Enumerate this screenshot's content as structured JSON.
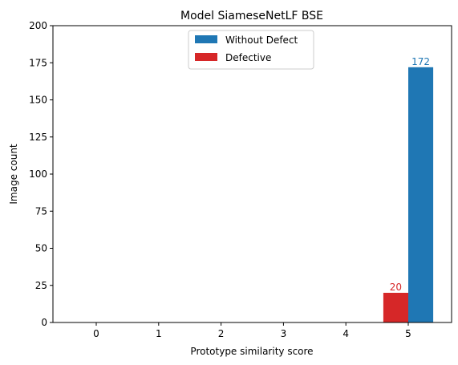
{
  "chart_data": {
    "type": "bar",
    "title": "Model SiameseNetLF BSE",
    "xlabel": "Prototype similarity score",
    "ylabel": "Image count",
    "categories": [
      "0",
      "1",
      "2",
      "3",
      "4",
      "5"
    ],
    "series": [
      {
        "name": "Defective",
        "color": "#d62728",
        "values": [
          0,
          0,
          0,
          0,
          0,
          20
        ]
      },
      {
        "name": "Without Defect",
        "color": "#1f77b4",
        "values": [
          0,
          0,
          0,
          0,
          0,
          172
        ]
      }
    ],
    "bar_labels": [
      {
        "series": "Defective",
        "category": "5",
        "text": "20",
        "color": "#d62728"
      },
      {
        "series": "Without Defect",
        "category": "5",
        "text": "172",
        "color": "#1f77b4"
      }
    ],
    "ylim": [
      0,
      200
    ],
    "yticks": [
      0,
      25,
      50,
      75,
      100,
      125,
      150,
      175,
      200
    ],
    "grid": false,
    "legend": {
      "position": "upper center",
      "entries": [
        {
          "label": "Without Defect",
          "color": "#1f77b4"
        },
        {
          "label": "Defective",
          "color": "#d62728"
        }
      ]
    }
  }
}
